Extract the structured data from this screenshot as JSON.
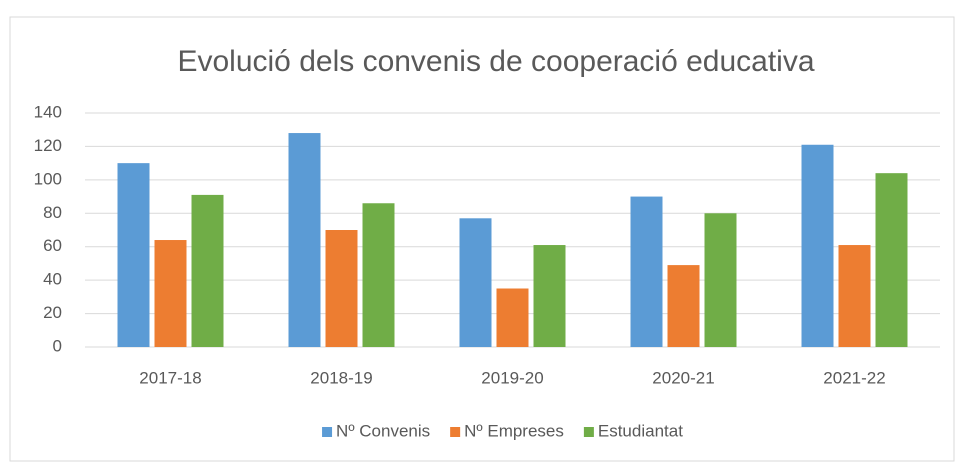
{
  "chart_data": {
    "type": "bar",
    "title": "Evolució dels convenis de cooperació educativa",
    "categories": [
      "2017-18",
      "2018-19",
      "2019-20",
      "2020-21",
      "2021-22"
    ],
    "series": [
      {
        "name": "Nº Convenis",
        "color": "#5b9bd5",
        "values": [
          110,
          128,
          77,
          90,
          121
        ]
      },
      {
        "name": "Nº Empreses",
        "color": "#ed7d31",
        "values": [
          64,
          70,
          35,
          49,
          61
        ]
      },
      {
        "name": "Estudiantat",
        "color": "#70ad47",
        "values": [
          91,
          86,
          61,
          80,
          104
        ]
      }
    ],
    "ylim": [
      0,
      140
    ],
    "yticks": [
      0,
      20,
      40,
      60,
      80,
      100,
      120,
      140
    ],
    "grid": true,
    "legend": "bottom"
  }
}
